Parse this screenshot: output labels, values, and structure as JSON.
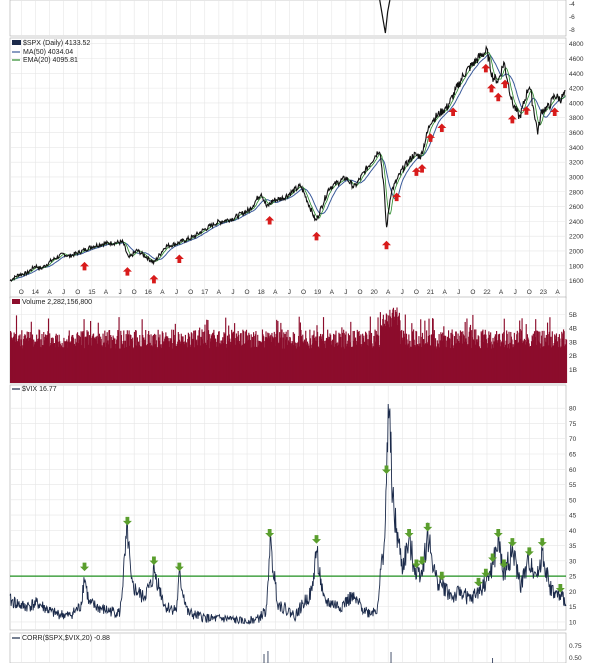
{
  "chart_data": [
    {
      "type": "line",
      "panel": "top-indicator",
      "y_ticks": [
        "-4",
        "-6",
        "-8"
      ],
      "note_visible": "partial panel with a sharp downward spike near 2020"
    },
    {
      "type": "line",
      "panel": "price",
      "legend": {
        "price": "$SPX (Daily) 4133.52",
        "ma50": "MA(50) 4034.04",
        "ema20": "EMA(20) 4095.81"
      },
      "colors": {
        "price": "#111111",
        "ma50": "#3a5a9a",
        "ema20": "#2a8a2a",
        "arrow": "#d81b1b",
        "grid": "#e4e4e4"
      },
      "y_ticks": [
        4800,
        4600,
        4400,
        4200,
        4000,
        3800,
        3600,
        3400,
        3200,
        3000,
        2800,
        2600,
        2400,
        2200,
        2000,
        1800,
        1600
      ],
      "ylim": [
        1500,
        4850
      ],
      "xlim": [
        2013.55,
        2023.4
      ],
      "x_tick_labels": [
        "J",
        "O",
        "14",
        "A",
        "J",
        "O",
        "15",
        "A",
        "J",
        "O",
        "16",
        "A",
        "J",
        "O",
        "17",
        "A",
        "J",
        "O",
        "18",
        "A",
        "J",
        "O",
        "19",
        "A",
        "J",
        "O",
        "20",
        "A",
        "J",
        "O",
        "21",
        "A",
        "J",
        "O",
        "22",
        "A",
        "J",
        "O",
        "23",
        "A"
      ],
      "x": [
        2013.55,
        2013.7,
        2013.85,
        2014.0,
        2014.1,
        2014.3,
        2014.5,
        2014.6,
        2014.8,
        2015.0,
        2015.2,
        2015.4,
        2015.55,
        2015.65,
        2015.8,
        2016.0,
        2016.1,
        2016.3,
        2016.5,
        2016.8,
        2016.95,
        2017.2,
        2017.5,
        2017.8,
        2018.0,
        2018.1,
        2018.2,
        2018.4,
        2018.7,
        2018.8,
        2018.97,
        2019.2,
        2019.5,
        2019.65,
        2019.9,
        2020.1,
        2020.17,
        2020.22,
        2020.3,
        2020.5,
        2020.7,
        2020.83,
        2021.0,
        2021.3,
        2021.6,
        2021.9,
        2022.0,
        2022.1,
        2022.2,
        2022.3,
        2022.45,
        2022.58,
        2022.75,
        2022.9,
        2022.97,
        2023.1,
        2023.2,
        2023.3,
        2023.4
      ],
      "price": [
        1600,
        1680,
        1700,
        1800,
        1760,
        1880,
        1960,
        1930,
        1990,
        2060,
        2100,
        2110,
        2120,
        1900,
        2010,
        1900,
        1840,
        2060,
        2100,
        2190,
        2270,
        2380,
        2440,
        2560,
        2790,
        2590,
        2680,
        2720,
        2880,
        2710,
        2400,
        2850,
        2990,
        2860,
        3150,
        3380,
        2900,
        2300,
        2800,
        3100,
        3300,
        3280,
        3750,
        3950,
        4400,
        4650,
        4700,
        4350,
        4300,
        4550,
        4000,
        3800,
        4250,
        3600,
        3900,
        3950,
        4100,
        4050,
        4133
      ]
    },
    {
      "type": "bar",
      "panel": "volume",
      "legend": "Volume 2,282,156,800",
      "colors": {
        "bar": "#8c0d2c",
        "outline": "#2a6e2a"
      },
      "y_ticks": [
        "5B",
        "4B",
        "3B",
        "2B",
        "1B"
      ],
      "ylim": [
        0,
        5.6
      ],
      "note_visible": "daily volume bars, mostly 2.5B–4B, spike near 5B in 2020"
    },
    {
      "type": "line",
      "panel": "vix",
      "legend": "$VIX 16.77",
      "colors": {
        "line": "#1b2a4a",
        "threshold": "#1f8f1f",
        "arrow": "#5a9e2d"
      },
      "threshold": 25,
      "y_ticks": [
        80,
        75,
        70,
        65,
        60,
        55,
        50,
        45,
        40,
        35,
        30,
        25,
        20,
        15,
        10
      ],
      "ylim": [
        8,
        84
      ],
      "x": [
        2013.55,
        2013.8,
        2014.05,
        2014.3,
        2014.6,
        2014.8,
        2014.87,
        2014.95,
        2015.2,
        2015.5,
        2015.63,
        2015.7,
        2015.9,
        2016.05,
        2016.1,
        2016.3,
        2016.5,
        2016.55,
        2016.7,
        2016.85,
        2017.1,
        2017.4,
        2017.7,
        2017.95,
        2018.1,
        2018.15,
        2018.3,
        2018.6,
        2018.9,
        2018.98,
        2019.1,
        2019.4,
        2019.6,
        2019.9,
        2020.05,
        2020.2,
        2020.25,
        2020.35,
        2020.5,
        2020.62,
        2020.75,
        2020.85,
        2020.95,
        2021.1,
        2021.2,
        2021.4,
        2021.55,
        2021.7,
        2021.85,
        2021.98,
        2022.1,
        2022.2,
        2022.3,
        2022.45,
        2022.6,
        2022.75,
        2022.9,
        2022.98,
        2023.1,
        2023.2,
        2023.3,
        2023.4
      ],
      "values": [
        17,
        15,
        16,
        13,
        12,
        15,
        25,
        16,
        14,
        13,
        40,
        22,
        18,
        22,
        27,
        15,
        14,
        25,
        13,
        12,
        11,
        11,
        10,
        11,
        14,
        36,
        16,
        12,
        20,
        34,
        17,
        15,
        18,
        13,
        14,
        40,
        82,
        45,
        28,
        36,
        26,
        27,
        38,
        24,
        22,
        18,
        20,
        17,
        20,
        23,
        28,
        36,
        26,
        33,
        22,
        30,
        25,
        33,
        22,
        19,
        18,
        17
      ]
    },
    {
      "type": "line",
      "panel": "correlation",
      "legend": "CORR($SPX,$VIX,20) -0.88",
      "y_ticks": [
        "0.75",
        "0.50"
      ]
    }
  ]
}
